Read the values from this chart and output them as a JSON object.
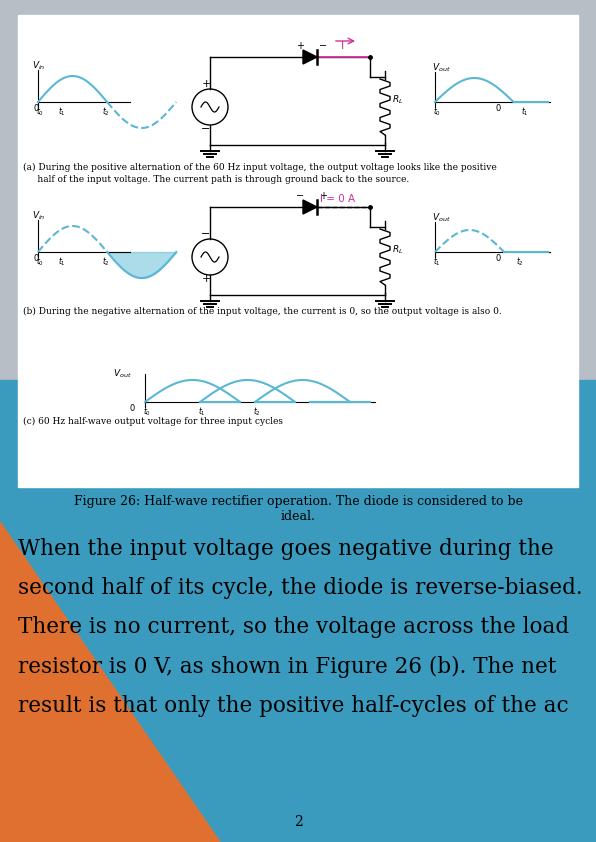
{
  "page_bg": "#b8bec5",
  "white_box_color": "#ffffff",
  "caption_text_line1": "Figure 26: Half-wave rectifier operation. The diode is considered to be",
  "caption_text_line2": "ideal.",
  "caption_fontsize": 9.0,
  "body_text_line1": "When the input voltage goes negative during the",
  "body_text_line2": "second half of its cycle, the diode is reverse-biased.",
  "body_text_line3": "There is no current, so the voltage across the load",
  "body_text_line4": "resistor is 0 V, as shown in Figure 26 (b). The net",
  "body_text_line5": "result is that only the positive half-cycles of the ac",
  "body_text_fontsize": 15.5,
  "page_number": "2",
  "page_number_fontsize": 10,
  "gray_bg_color": "#b8bec5",
  "blue_bg_color": "#3a9bbf",
  "orange_triangle_color": "#e07030",
  "wave_color": "#5bb8d4",
  "wire_pink": "#cc3399",
  "sub_caption_a": "(a) During the positive alternation of the 60 Hz input voltage, the output voltage looks like the positive",
  "sub_caption_a2": "     half of the input voltage. The current path is through ground back to the source.",
  "sub_caption_b": "(b) During the negative alternation of the input voltage, the current is 0, so the output voltage is also 0.",
  "sub_caption_c": "(c) 60 Hz half-wave output voltage for three input cycles",
  "sub_caption_fontsize": 6.5
}
